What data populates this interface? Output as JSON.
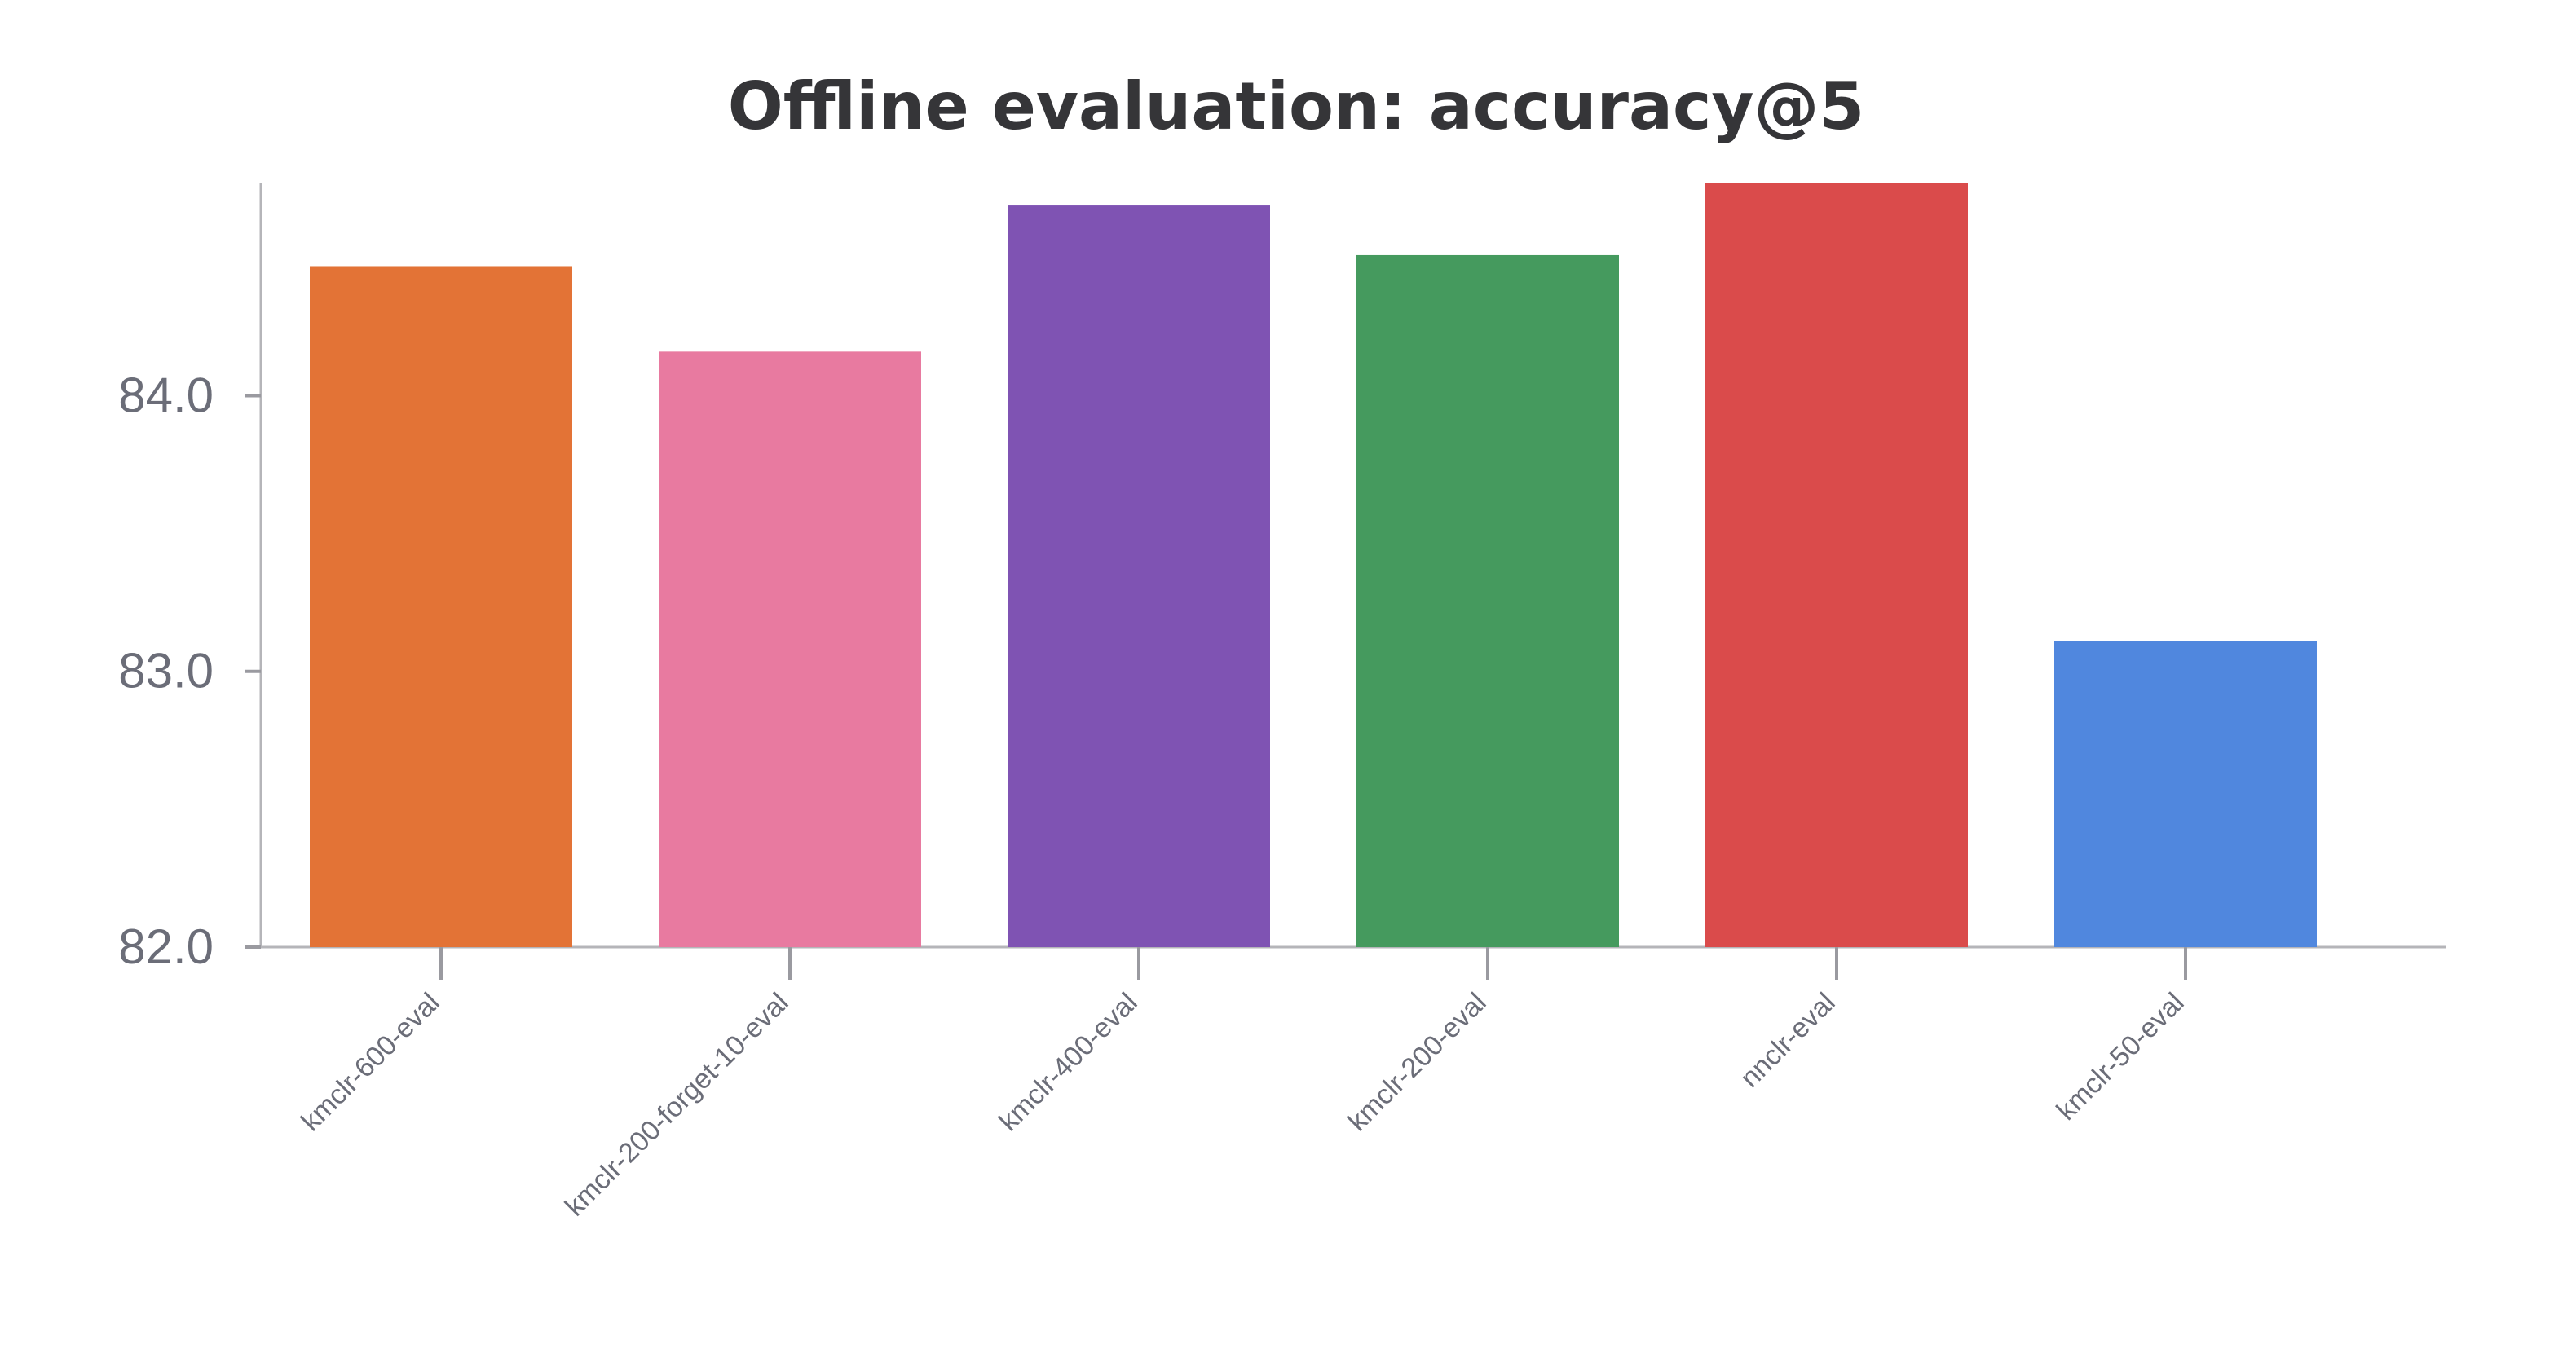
{
  "chart_data": {
    "type": "bar",
    "title": "Offline evaluation: accuracy@5",
    "xlabel": "",
    "ylabel": "",
    "categories": [
      "kmclr-600-eval",
      "kmclr-200-forget-10-eval",
      "kmclr-400-eval",
      "kmclr-200-eval",
      "nnclr-eval",
      "kmclr-50-eval"
    ],
    "values": [
      84.47,
      84.16,
      84.69,
      84.51,
      84.77,
      83.11
    ],
    "colors": [
      "#e37336",
      "#e87aa0",
      "#7f53b3",
      "#459a5e",
      "#da4b4b",
      "#5087de"
    ],
    "ylim": [
      82.0,
      84.77
    ],
    "yticks": [
      82.0,
      83.0,
      84.0
    ],
    "ytick_labels": [
      "82.0",
      "83.0",
      "84.0"
    ],
    "grid": false,
    "legend": "none"
  }
}
